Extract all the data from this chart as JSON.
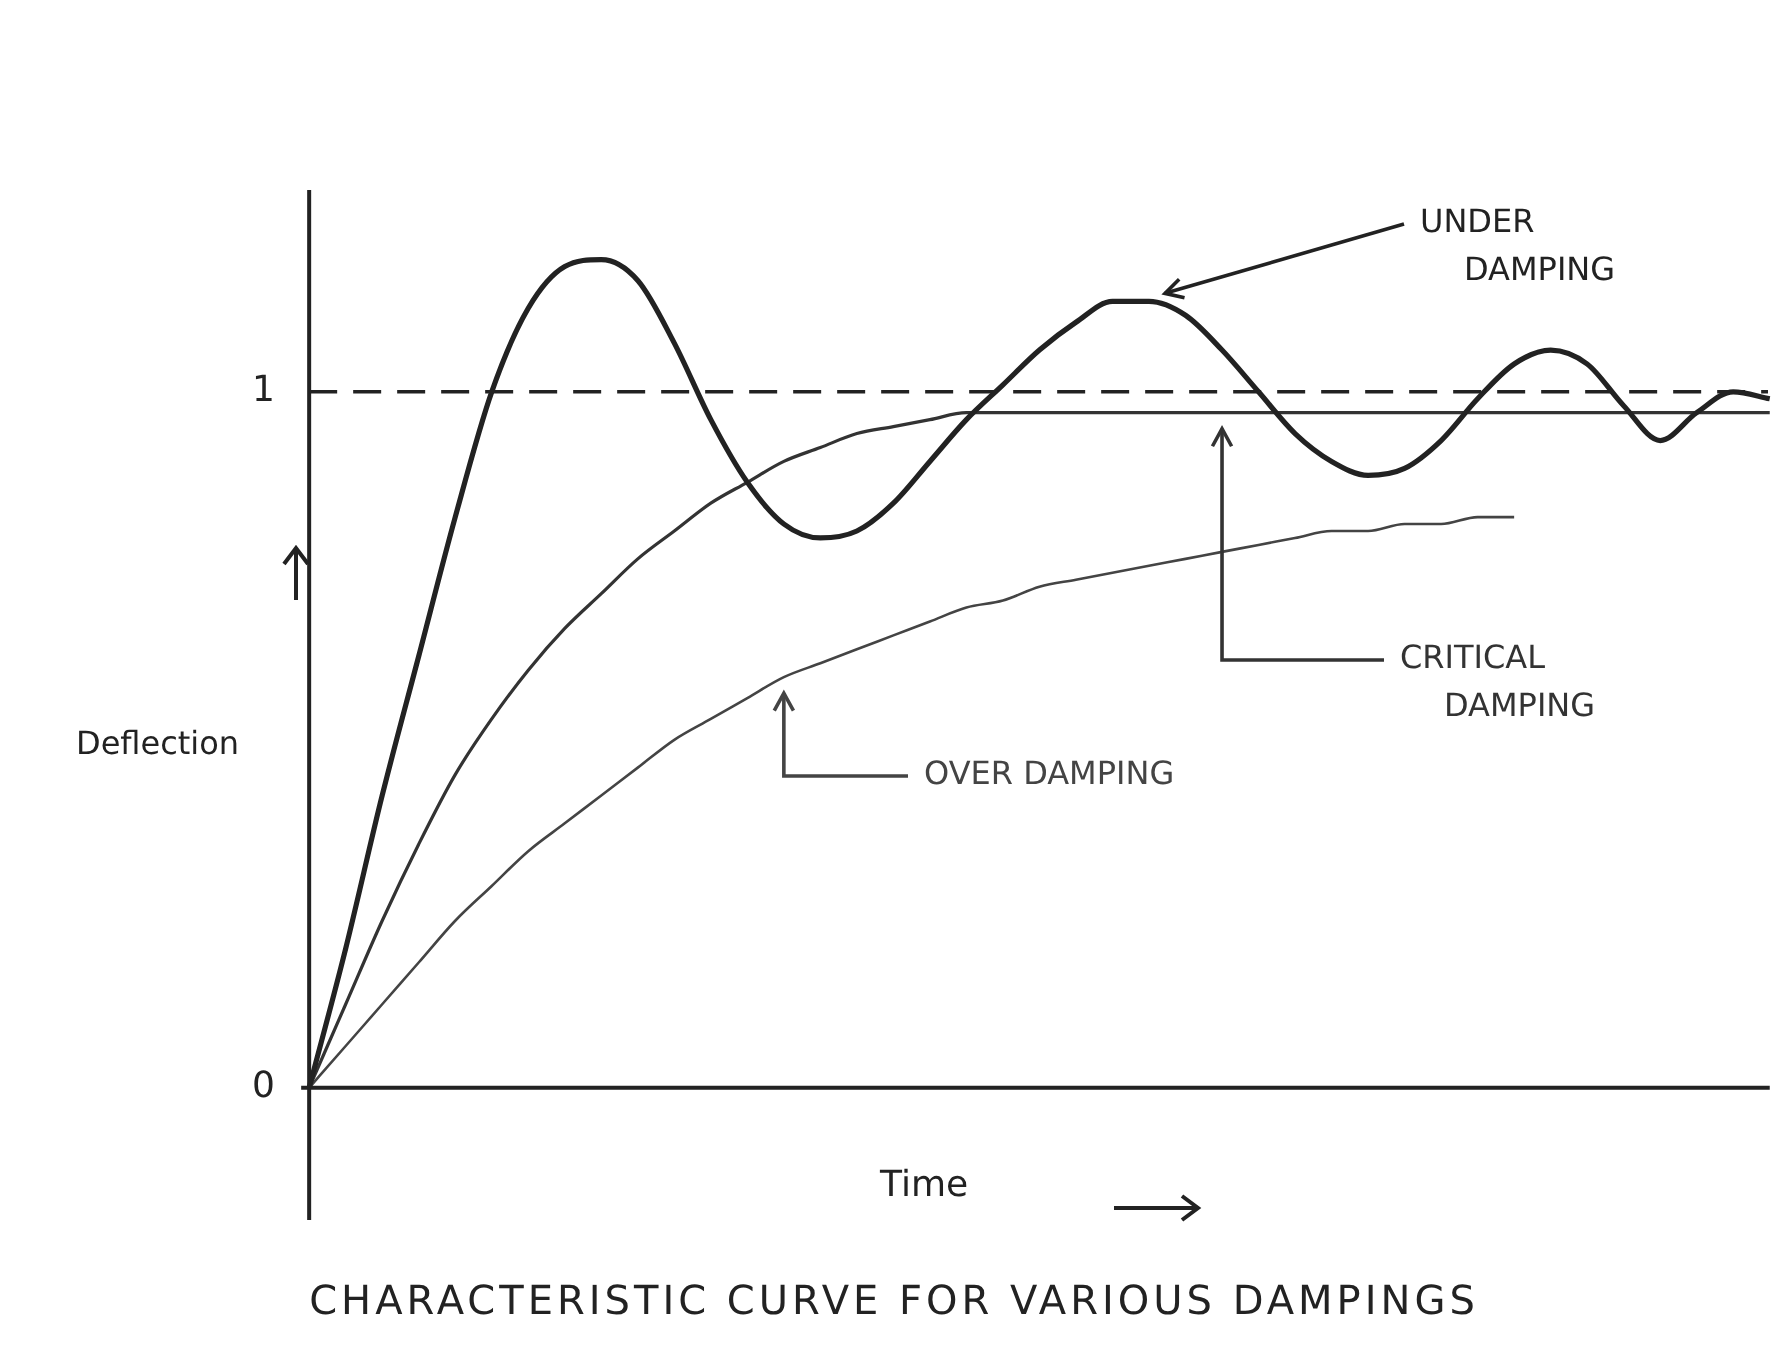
{
  "chart_data": {
    "type": "line",
    "title": "CHARACTERISTIC CURVE FOR VARIOUS DAMPINGS",
    "xlabel": "Time",
    "ylabel": "Deflection",
    "categories": [
      null,
      null,
      null,
      null,
      null,
      null,
      null,
      null,
      null,
      null,
      null,
      null,
      null,
      null,
      null,
      null,
      null,
      null,
      null,
      null,
      null,
      null,
      null,
      null,
      null,
      null,
      null,
      null,
      null,
      null,
      null,
      null,
      null,
      null,
      null,
      null,
      null,
      null,
      null,
      null,
      null
    ],
    "series": [
      {
        "name": "UNDER DAMPING",
        "color": "#222222",
        "values": [
          0,
          0.2,
          0.42,
          0.62,
          0.82,
          1.0,
          1.12,
          1.18,
          1.19,
          1.16,
          1.07,
          0.96,
          0.87,
          0.81,
          0.79,
          0.8,
          0.84,
          0.9,
          0.96,
          1.01,
          1.06,
          1.1,
          1.13,
          1.13,
          1.11,
          1.06,
          1.0,
          0.94,
          0.9,
          0.88,
          0.89,
          0.93,
          0.99,
          1.04,
          1.06,
          1.04,
          0.98,
          0.93,
          0.97,
          1.0,
          0.99
        ]
      },
      {
        "name": "CRITICAL DAMPING",
        "color": "#333333",
        "values": [
          0,
          0.12,
          0.24,
          0.35,
          0.45,
          0.53,
          0.6,
          0.66,
          0.71,
          0.76,
          0.8,
          0.84,
          0.87,
          0.9,
          0.92,
          0.94,
          0.95,
          0.96,
          0.97,
          0.97,
          0.97,
          0.97,
          0.97,
          0.97,
          0.97,
          0.97,
          0.97,
          0.97,
          0.97,
          0.97,
          0.97,
          0.97,
          0.97,
          0.97,
          0.97,
          0.97,
          0.97,
          0.97,
          0.97,
          0.97,
          0.97
        ]
      },
      {
        "name": "OVER DAMPING",
        "color": "#444444",
        "values": [
          0,
          0.06,
          0.12,
          0.18,
          0.24,
          0.29,
          0.34,
          0.38,
          0.42,
          0.46,
          0.5,
          0.53,
          0.56,
          0.59,
          0.61,
          0.63,
          0.65,
          0.67,
          0.69,
          0.7,
          0.72,
          0.73,
          0.74,
          0.75,
          0.76,
          0.77,
          0.78,
          0.79,
          0.8,
          0.8,
          0.81,
          0.81,
          0.82,
          0.82,
          null,
          null,
          null,
          null,
          null,
          null,
          null
        ]
      }
    ],
    "ylim": [
      -0.19,
      1.29
    ],
    "yticks": [
      0,
      1
    ],
    "tick_labels": "y",
    "grid": false,
    "legend": false,
    "marker": "none",
    "line_style": "solid",
    "ref_lines": [
      {
        "axis": "y",
        "value": 1,
        "line_style": "dashed",
        "color": "#222222"
      }
    ]
  }
}
